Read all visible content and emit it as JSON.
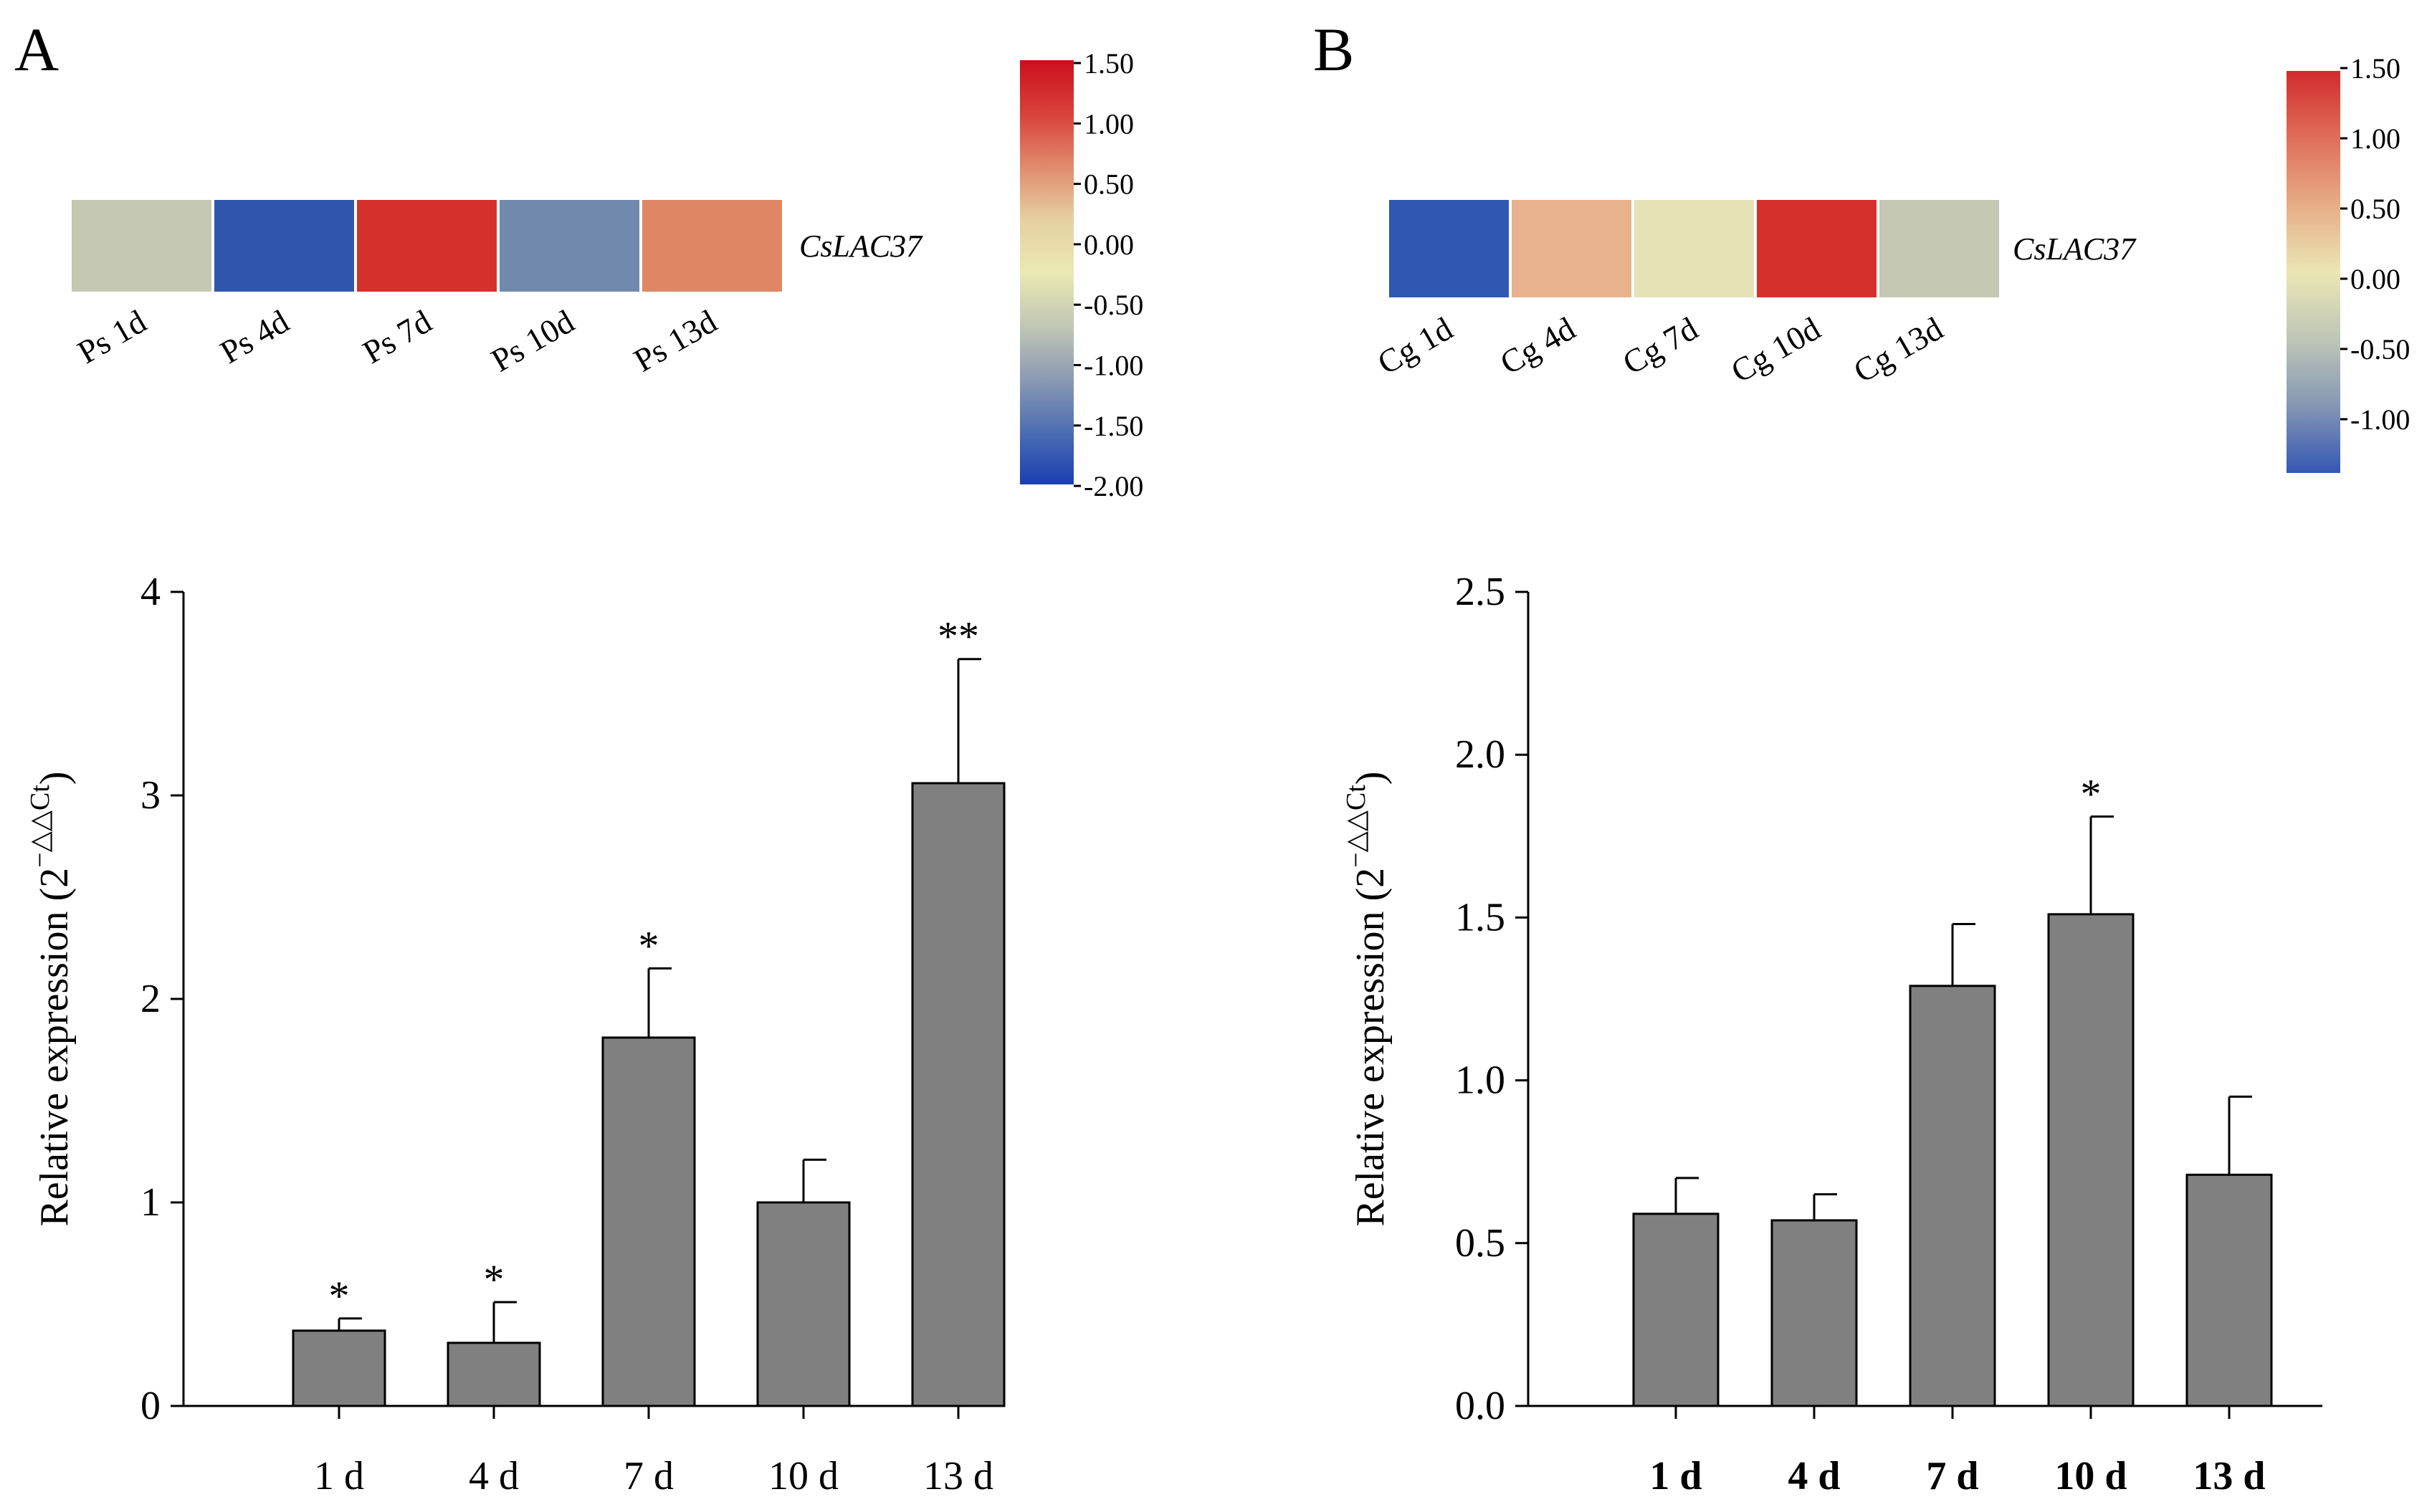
{
  "panels": {
    "A": {
      "label": "A",
      "heatmap": {
        "gene": "CsLAC37",
        "columns": [
          "Ps 1d",
          "Ps 4d",
          "Ps 7d",
          "Ps 10d",
          "Ps 13d"
        ],
        "cell_colors": [
          "#c5c9b3",
          "#2f55ac",
          "#d5312c",
          "#7089ad",
          "#df8765"
        ]
      },
      "colorbar": {
        "ticks": [
          "1.50",
          "1.00",
          "0.50",
          "0.00",
          "-0.50",
          "-1.00",
          "-1.50",
          "-2.00"
        ],
        "colors": [
          "#cc0f1d",
          "#d8413a",
          "#e08a6c",
          "#e6cfa0",
          "#eae9b4",
          "#c2c7b4",
          "#8c9bb4",
          "#4d6eb3",
          "#1a3fb0"
        ]
      }
    },
    "B": {
      "label": "B",
      "heatmap": {
        "gene": "CsLAC37",
        "columns": [
          "Cg 1d",
          "Cg 4d",
          "Cg 7d",
          "Cg 10d",
          "Cg 13d"
        ],
        "cell_colors": [
          "#2f57b1",
          "#e7b28c",
          "#e5e2b5",
          "#d5312c",
          "#c5c9b3"
        ]
      },
      "colorbar": {
        "ticks": [
          "1.50",
          "1.00",
          "0.50",
          "0.00",
          "-0.50",
          "-1.00"
        ],
        "colors": [
          "#d12b2b",
          "#df6e5a",
          "#e6ad86",
          "#eae6b4",
          "#bfc6b8",
          "#8497b4",
          "#3457b4"
        ]
      }
    }
  },
  "chart_data": [
    {
      "type": "bar",
      "panel": "A",
      "categories": [
        "1 d",
        "4 d",
        "7 d",
        "10 d",
        "13 d"
      ],
      "values": [
        0.37,
        0.31,
        1.81,
        1.0,
        3.06
      ],
      "errors": [
        0.06,
        0.2,
        0.34,
        0.21,
        0.61
      ],
      "significance": [
        "*",
        "*",
        "*",
        "",
        "**"
      ],
      "ylabel": "Relative expression (2",
      "ylabel_exponent": "−△△Ct",
      "ylabel_close": ")",
      "ylim": [
        0,
        4
      ],
      "yticks": [
        0,
        1,
        2,
        3,
        4
      ],
      "ytick_labels": [
        "0",
        "1",
        "2",
        "3",
        "4"
      ],
      "bar_color": "#808080"
    },
    {
      "type": "bar",
      "panel": "B",
      "categories": [
        "1 d",
        "4 d",
        "7 d",
        "10 d",
        "13 d"
      ],
      "values": [
        0.59,
        0.57,
        1.29,
        1.51,
        0.71
      ],
      "errors": [
        0.11,
        0.08,
        0.19,
        0.3,
        0.24
      ],
      "significance": [
        "",
        "",
        "",
        "*",
        ""
      ],
      "ylabel": "Relative expression (2",
      "ylabel_exponent": "−△△Ct",
      "ylabel_close": ")",
      "ylim": [
        0,
        2.5
      ],
      "yticks": [
        0,
        0.5,
        1.0,
        1.5,
        2.0,
        2.5
      ],
      "ytick_labels": [
        "0.0",
        "0.5",
        "1.0",
        "1.5",
        "2.0",
        "2.5"
      ],
      "bar_color": "#808080"
    }
  ]
}
